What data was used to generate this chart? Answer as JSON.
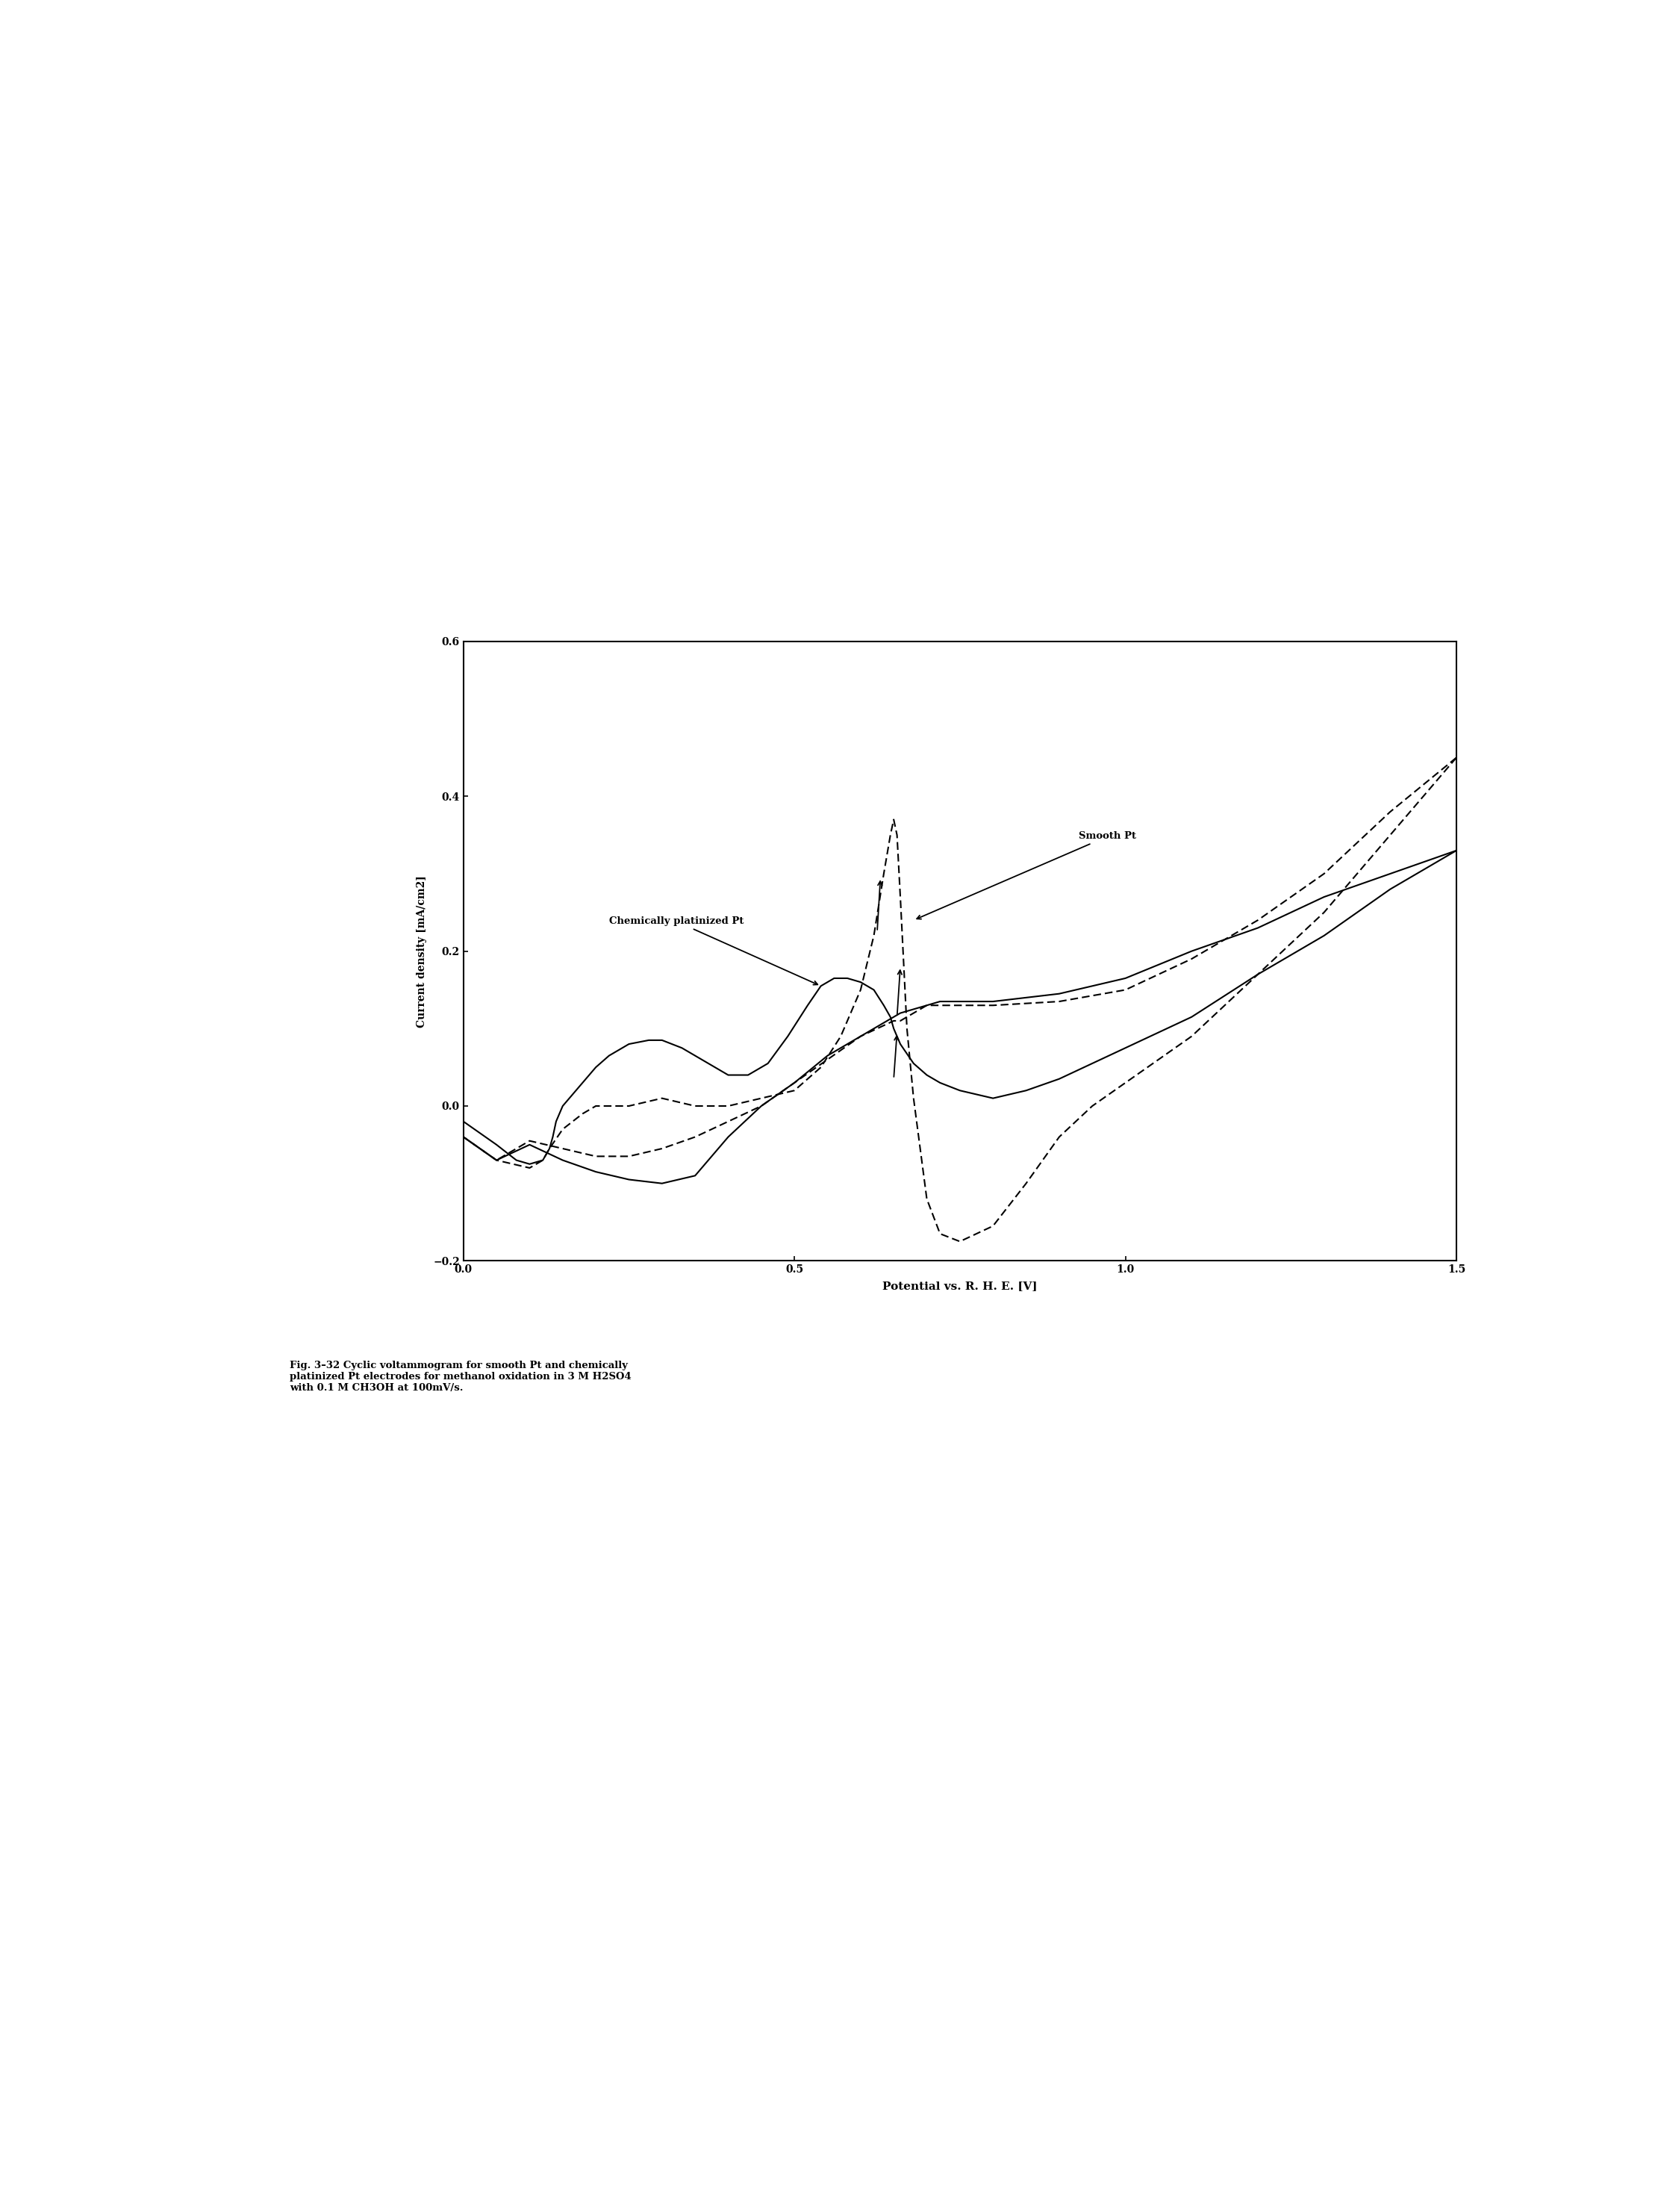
{
  "caption": "Fig. 3–32 Cyclic voltammogram for smooth Pt and chemically\nplatinized Pt electrodes for methanol oxidation in 3 M H2SO4\nwith 0.1 M CH3OH at 100mV/s.",
  "xlabel": "Potential vs. R. H. E. [V]",
  "ylabel": "Current density [mA/cm2]",
  "xlim": [
    0,
    1.5
  ],
  "ylim": [
    -0.2,
    0.6
  ],
  "xticks": [
    0,
    0.5,
    1,
    1.5
  ],
  "yticks": [
    -0.2,
    0.0,
    0.2,
    0.4,
    0.6
  ],
  "background_color": "#ffffff",
  "smooth_pt_label": "Smooth Pt",
  "chem_pt_label": "Chemically platinized Pt",
  "line_color": "#000000",
  "sp_fwd_x": [
    0.0,
    0.05,
    0.1,
    0.12,
    0.13,
    0.15,
    0.18,
    0.2,
    0.25,
    0.3,
    0.35,
    0.4,
    0.45,
    0.5,
    0.54,
    0.57,
    0.6,
    0.62,
    0.635,
    0.645,
    0.65,
    0.655,
    0.66,
    0.67,
    0.68,
    0.7,
    0.72,
    0.75,
    0.8,
    0.85,
    0.9,
    0.95,
    1.0,
    1.1,
    1.2,
    1.3,
    1.4,
    1.5
  ],
  "sp_fwd_y": [
    -0.04,
    -0.07,
    -0.08,
    -0.07,
    -0.055,
    -0.03,
    -0.01,
    0.0,
    0.0,
    0.01,
    0.0,
    0.0,
    0.01,
    0.02,
    0.05,
    0.09,
    0.15,
    0.22,
    0.3,
    0.35,
    0.37,
    0.35,
    0.27,
    0.1,
    0.01,
    -0.12,
    -0.165,
    -0.175,
    -0.155,
    -0.1,
    -0.04,
    0.0,
    0.03,
    0.09,
    0.17,
    0.25,
    0.35,
    0.45
  ],
  "sp_ret_x": [
    1.5,
    1.4,
    1.3,
    1.2,
    1.1,
    1.0,
    0.9,
    0.8,
    0.75,
    0.72,
    0.7,
    0.68,
    0.66,
    0.65,
    0.6,
    0.55,
    0.5,
    0.45,
    0.4,
    0.35,
    0.3,
    0.25,
    0.2,
    0.15,
    0.1,
    0.05,
    0.0
  ],
  "sp_ret_y": [
    0.45,
    0.38,
    0.3,
    0.24,
    0.19,
    0.15,
    0.135,
    0.13,
    0.13,
    0.13,
    0.13,
    0.12,
    0.11,
    0.11,
    0.09,
    0.06,
    0.03,
    0.0,
    -0.02,
    -0.04,
    -0.055,
    -0.065,
    -0.065,
    -0.055,
    -0.045,
    -0.07,
    -0.04
  ],
  "cp_fwd_x": [
    0.0,
    0.05,
    0.08,
    0.1,
    0.12,
    0.13,
    0.135,
    0.14,
    0.15,
    0.18,
    0.2,
    0.22,
    0.25,
    0.28,
    0.3,
    0.33,
    0.35,
    0.38,
    0.4,
    0.43,
    0.46,
    0.49,
    0.52,
    0.54,
    0.56,
    0.58,
    0.6,
    0.62,
    0.635,
    0.645,
    0.65,
    0.66,
    0.68,
    0.7,
    0.72,
    0.75,
    0.8,
    0.85,
    0.9,
    0.95,
    1.0,
    1.1,
    1.2,
    1.3,
    1.4,
    1.5
  ],
  "cp_fwd_y": [
    -0.02,
    -0.05,
    -0.07,
    -0.075,
    -0.07,
    -0.055,
    -0.04,
    -0.02,
    0.0,
    0.03,
    0.05,
    0.065,
    0.08,
    0.085,
    0.085,
    0.075,
    0.065,
    0.05,
    0.04,
    0.04,
    0.055,
    0.09,
    0.13,
    0.155,
    0.165,
    0.165,
    0.16,
    0.15,
    0.13,
    0.115,
    0.1,
    0.08,
    0.055,
    0.04,
    0.03,
    0.02,
    0.01,
    0.02,
    0.035,
    0.055,
    0.075,
    0.115,
    0.17,
    0.22,
    0.28,
    0.33
  ],
  "cp_ret_x": [
    1.5,
    1.4,
    1.3,
    1.2,
    1.1,
    1.0,
    0.9,
    0.85,
    0.8,
    0.75,
    0.72,
    0.7,
    0.68,
    0.66,
    0.65,
    0.6,
    0.55,
    0.5,
    0.45,
    0.4,
    0.35,
    0.3,
    0.25,
    0.2,
    0.15,
    0.1,
    0.05,
    0.0
  ],
  "cp_ret_y": [
    0.33,
    0.3,
    0.27,
    0.23,
    0.2,
    0.165,
    0.145,
    0.14,
    0.135,
    0.135,
    0.135,
    0.13,
    0.125,
    0.12,
    0.115,
    0.09,
    0.065,
    0.03,
    0.0,
    -0.04,
    -0.09,
    -0.1,
    -0.095,
    -0.085,
    -0.07,
    -0.05,
    -0.07,
    -0.04
  ]
}
